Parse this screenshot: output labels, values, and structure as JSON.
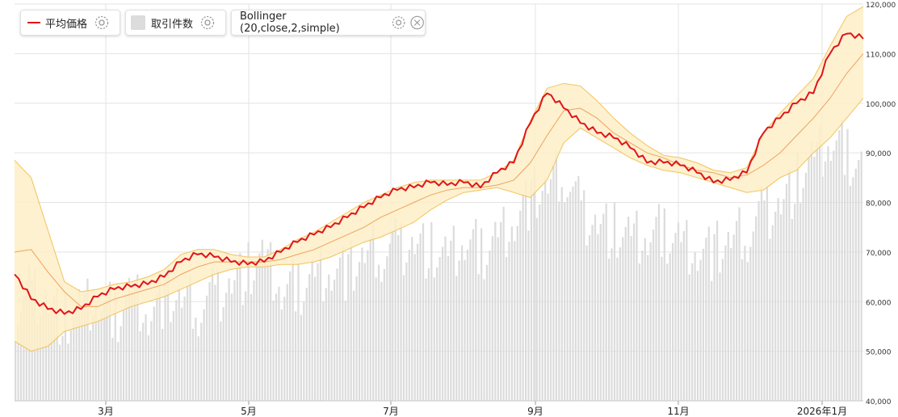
{
  "legend": {
    "price_label": "平均価格",
    "volume_label": "取引件数",
    "indicator_label": "Bollinger (20,close,2,simple)"
  },
  "colors": {
    "price": "#e0141b",
    "band_fill": "#fdeec8",
    "band_line": "#f2c35c",
    "mid_line": "#f0a25a",
    "volume": "#dcdcdc",
    "grid": "#e3e3e3"
  },
  "icons": {
    "settings": "gear-icon",
    "remove": "close-icon"
  },
  "chart_data": {
    "type": "line",
    "x_labels": [
      "3月",
      "5月",
      "7月",
      "9月",
      "11月",
      "2026年1月"
    ],
    "y_ticks": [
      "40,000",
      "50,000",
      "60,000",
      "70,000",
      "80,000",
      "90,000",
      "100,000",
      "110,000",
      "120,000"
    ],
    "ylim": [
      40000,
      120000
    ],
    "grid": true,
    "series": [
      {
        "name": "平均価格",
        "kind": "line",
        "values": [
          65500,
          60500,
          58500,
          57500,
          58500,
          61000,
          62500,
          63000,
          63500,
          65000,
          68000,
          69500,
          69000,
          68000,
          67500,
          68000,
          70000,
          72000,
          73500,
          75000,
          77000,
          79000,
          81000,
          82500,
          83000,
          84000,
          83500,
          84000,
          83000,
          86000,
          88000,
          96000,
          102000,
          99000,
          96000,
          94000,
          93000,
          91000,
          88000,
          88000,
          87500,
          86000,
          84000,
          84500,
          86000,
          94000,
          97000,
          100000,
          102000,
          110000,
          114000,
          113000
        ]
      },
      {
        "name": "取引件数",
        "kind": "bar",
        "values": [
          58000,
          62000,
          60000,
          56000,
          58000,
          60000,
          57000,
          62000,
          58000,
          61000,
          60000,
          59000,
          61000,
          64000,
          66000,
          68000,
          62000,
          63000,
          65000,
          67000,
          66000,
          69000,
          70000,
          71000,
          72000,
          70000,
          68000,
          72000,
          70000,
          73000,
          77000,
          81000,
          83000,
          86000,
          78000,
          76000,
          74000,
          72000,
          73000,
          74000,
          72000,
          71000,
          70000,
          72000,
          74000,
          78000,
          80000,
          84000,
          88000,
          92000,
          90000,
          86000
        ]
      },
      {
        "name": "Bollinger (20,close,2,simple)",
        "kind": "band",
        "upper": [
          88500,
          85000,
          74500,
          64000,
          62000,
          62500,
          63500,
          64000,
          65000,
          66500,
          69500,
          70500,
          70500,
          69500,
          69000,
          69000,
          70500,
          72500,
          74000,
          76000,
          78000,
          80000,
          81500,
          83000,
          84000,
          84500,
          84500,
          84500,
          84500,
          86000,
          88500,
          96500,
          103000,
          104000,
          103500,
          100500,
          97000,
          94000,
          91500,
          89500,
          89000,
          88000,
          86500,
          86000,
          87000,
          94000,
          98000,
          101500,
          105000,
          111500,
          117500,
          119500
        ],
        "middle": [
          70000,
          70500,
          66000,
          62000,
          59000,
          59000,
          60500,
          61500,
          62500,
          63500,
          65500,
          67000,
          68000,
          68000,
          68000,
          68000,
          68500,
          69500,
          70500,
          72000,
          73500,
          75000,
          77000,
          78500,
          80000,
          81500,
          82500,
          83000,
          83000,
          83500,
          84500,
          88000,
          93500,
          98500,
          99000,
          97000,
          94000,
          92000,
          90000,
          89000,
          87500,
          86500,
          86000,
          85000,
          85500,
          87500,
          90000,
          93500,
          97000,
          101000,
          106000,
          110000
        ],
        "lower": [
          52000,
          50000,
          51000,
          54000,
          55000,
          56000,
          57500,
          59000,
          60000,
          61000,
          62500,
          64000,
          65500,
          66500,
          67000,
          67000,
          67500,
          67500,
          68000,
          69000,
          70500,
          72000,
          73000,
          74500,
          76000,
          78500,
          80500,
          82000,
          82500,
          83000,
          82000,
          81000,
          84500,
          92000,
          95000,
          93000,
          91000,
          89000,
          87500,
          86500,
          86000,
          85000,
          84000,
          83000,
          82000,
          82500,
          85000,
          86500,
          90000,
          93000,
          97000,
          101000
        ]
      }
    ]
  }
}
